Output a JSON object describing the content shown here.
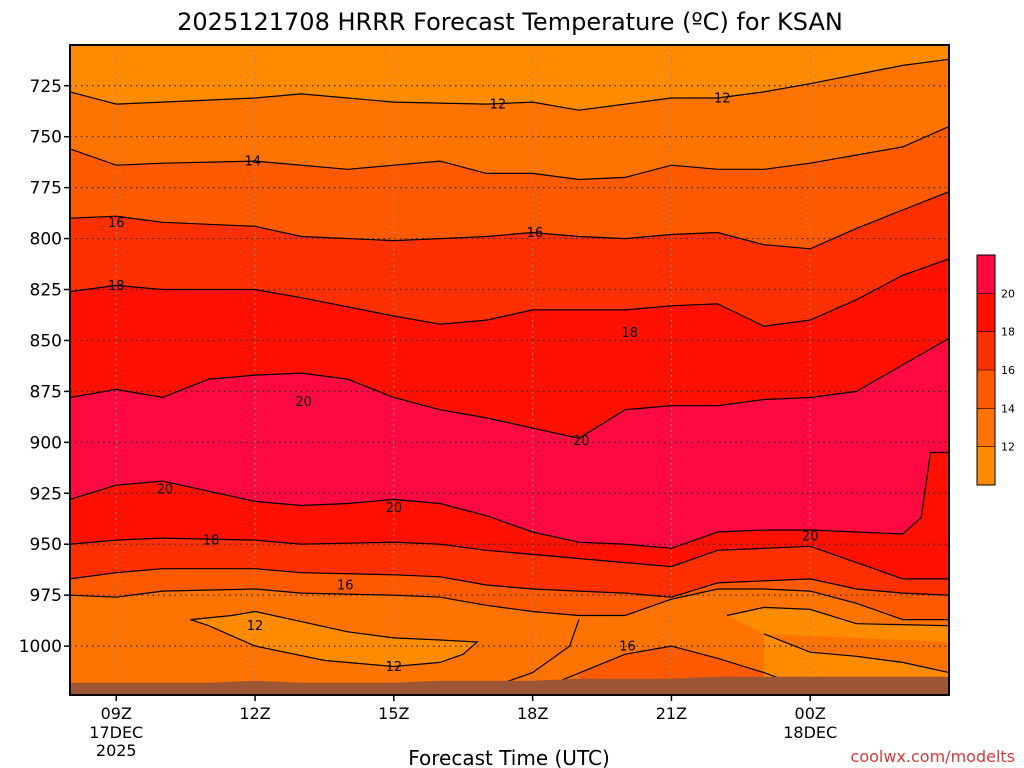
{
  "chart_data": {
    "type": "heatmap",
    "subtype": "filled-contour",
    "title": "2025121708 HRRR Forecast Temperature (ºC) for KSAN",
    "xlabel": "Forecast Time (UTC)",
    "ylabel": "",
    "x_ticks": [
      {
        "label": "09Z",
        "sub": [
          "17DEC",
          "2025"
        ]
      },
      {
        "label": "12Z",
        "sub": []
      },
      {
        "label": "15Z",
        "sub": []
      },
      {
        "label": "18Z",
        "sub": []
      },
      {
        "label": "21Z",
        "sub": []
      },
      {
        "label": "00Z",
        "sub": [
          "18DEC"
        ]
      }
    ],
    "x_range_hours": [
      8.0,
      27.0
    ],
    "x_tick_hours": [
      9,
      12,
      15,
      18,
      21,
      24
    ],
    "y_ticks": [
      725,
      750,
      775,
      800,
      825,
      850,
      875,
      900,
      925,
      950,
      975,
      1000
    ],
    "y_range": [
      705,
      1024
    ],
    "y_inverted": true,
    "grid": "dotted",
    "levels": [
      12,
      14,
      16,
      18,
      20
    ],
    "colorbar": {
      "ticks": [
        "12",
        "14",
        "16",
        "18",
        "20"
      ],
      "colors": [
        "#ff8c00",
        "#ff7400",
        "#ff5a00",
        "#ff3000",
        "#ff1000",
        "#ff0a40"
      ]
    },
    "contour_labels": [
      {
        "value": "12",
        "hour": 17.25,
        "p": 734
      },
      {
        "value": "12",
        "hour": 22.1,
        "p": 731
      },
      {
        "value": "14",
        "hour": 11.95,
        "p": 762
      },
      {
        "value": "16",
        "hour": 9.0,
        "p": 792
      },
      {
        "value": "16",
        "hour": 18.05,
        "p": 797
      },
      {
        "value": "18",
        "hour": 9.0,
        "p": 823
      },
      {
        "value": "18",
        "hour": 20.1,
        "p": 846
      },
      {
        "value": "20",
        "hour": 13.05,
        "p": 880
      },
      {
        "value": "20",
        "hour": 19.05,
        "p": 899
      },
      {
        "value": "20",
        "hour": 10.05,
        "p": 923
      },
      {
        "value": "20",
        "hour": 15.0,
        "p": 932
      },
      {
        "value": "20",
        "hour": 24.0,
        "p": 946
      },
      {
        "value": "18",
        "hour": 11.05,
        "p": 948
      },
      {
        "value": "16",
        "hour": 13.95,
        "p": 970
      },
      {
        "value": "12",
        "hour": 12.0,
        "p": 990
      },
      {
        "value": "16",
        "hour": 20.05,
        "p": 1000
      },
      {
        "value": "12",
        "hour": 15.0,
        "p": 1010
      }
    ],
    "contour_lines": [
      {
        "level": 12,
        "points": [
          [
            8.0,
            728
          ],
          [
            9.0,
            734
          ],
          [
            10.0,
            733
          ],
          [
            12.0,
            731
          ],
          [
            13.0,
            729
          ],
          [
            15.0,
            733
          ],
          [
            17.0,
            734
          ],
          [
            18.0,
            733
          ],
          [
            19.0,
            737
          ],
          [
            20.0,
            734
          ],
          [
            21.0,
            731
          ],
          [
            22.0,
            731
          ],
          [
            23.0,
            728
          ],
          [
            24.0,
            724
          ],
          [
            26.0,
            715
          ],
          [
            27.0,
            712
          ]
        ]
      },
      {
        "level": 14,
        "points": [
          [
            8.0,
            756
          ],
          [
            9.0,
            764
          ],
          [
            10.0,
            763
          ],
          [
            12.0,
            762
          ],
          [
            14.0,
            766
          ],
          [
            15.0,
            764
          ],
          [
            16.0,
            762
          ],
          [
            17.0,
            768
          ],
          [
            18.0,
            768
          ],
          [
            19.0,
            771
          ],
          [
            20.0,
            770
          ],
          [
            21.0,
            764
          ],
          [
            22.0,
            766
          ],
          [
            23.0,
            766
          ],
          [
            24.0,
            763
          ],
          [
            26.0,
            755
          ],
          [
            27.0,
            745
          ]
        ]
      },
      {
        "level": 16,
        "points": [
          [
            8.0,
            790
          ],
          [
            9.0,
            789
          ],
          [
            10.0,
            792
          ],
          [
            12.0,
            794
          ],
          [
            13.0,
            799
          ],
          [
            15.0,
            801
          ],
          [
            16.0,
            800
          ],
          [
            17.0,
            799
          ],
          [
            18.0,
            797
          ],
          [
            19.0,
            799
          ],
          [
            20.0,
            800
          ],
          [
            21.0,
            798
          ],
          [
            22.0,
            797
          ],
          [
            23.0,
            803
          ],
          [
            24.0,
            805
          ],
          [
            25.0,
            795
          ],
          [
            26.0,
            786
          ],
          [
            27.0,
            777
          ]
        ]
      },
      {
        "level": 18,
        "points": [
          [
            8.0,
            826
          ],
          [
            9.0,
            823
          ],
          [
            10.0,
            825
          ],
          [
            12.0,
            825
          ],
          [
            13.0,
            829
          ],
          [
            15.0,
            838
          ],
          [
            16.0,
            842
          ],
          [
            17.0,
            840
          ],
          [
            18.0,
            835
          ],
          [
            19.0,
            835
          ],
          [
            20.0,
            835
          ],
          [
            21.0,
            833
          ],
          [
            22.0,
            832
          ],
          [
            23.0,
            843
          ],
          [
            24.0,
            840
          ],
          [
            25.0,
            830
          ],
          [
            26.0,
            818
          ],
          [
            27.0,
            810
          ]
        ]
      },
      {
        "level": 20,
        "points": [
          [
            8.0,
            878
          ],
          [
            9.0,
            874
          ],
          [
            10.0,
            878
          ],
          [
            11.0,
            869
          ],
          [
            12.0,
            867
          ],
          [
            13.0,
            866
          ],
          [
            14.0,
            869
          ],
          [
            15.0,
            878
          ],
          [
            16.0,
            884
          ],
          [
            17.0,
            888
          ],
          [
            18.0,
            893
          ],
          [
            19.0,
            898
          ],
          [
            20.0,
            884
          ],
          [
            21.0,
            882
          ],
          [
            22.0,
            882
          ],
          [
            23.0,
            879
          ],
          [
            24.0,
            878
          ],
          [
            25.0,
            875
          ],
          [
            26.0,
            862
          ],
          [
            27.0,
            849
          ]
        ]
      },
      {
        "level": 20,
        "points": [
          [
            8.0,
            928
          ],
          [
            9.0,
            921
          ],
          [
            10.0,
            919
          ],
          [
            11.0,
            924
          ],
          [
            12.0,
            929
          ],
          [
            13.0,
            931
          ],
          [
            14.0,
            930
          ],
          [
            15.0,
            928
          ],
          [
            16.0,
            930
          ],
          [
            17.0,
            936
          ],
          [
            18.0,
            944
          ],
          [
            19.0,
            949
          ],
          [
            20.0,
            950
          ],
          [
            21.0,
            952
          ],
          [
            22.0,
            944
          ],
          [
            23.0,
            943
          ],
          [
            24.0,
            943
          ],
          [
            25.0,
            944
          ],
          [
            26.0,
            945
          ],
          [
            26.4,
            937
          ],
          [
            26.6,
            905
          ],
          [
            27.0,
            905
          ]
        ]
      },
      {
        "level": 18,
        "points": [
          [
            8.0,
            950
          ],
          [
            9.0,
            948
          ],
          [
            10.0,
            947
          ],
          [
            12.0,
            948
          ],
          [
            13.0,
            950
          ],
          [
            15.0,
            949
          ],
          [
            16.0,
            950
          ],
          [
            17.0,
            953
          ],
          [
            18.0,
            955
          ],
          [
            19.0,
            957
          ],
          [
            20.0,
            959
          ],
          [
            21.0,
            961
          ],
          [
            22.0,
            953
          ],
          [
            23.0,
            952
          ],
          [
            24.0,
            951
          ],
          [
            25.0,
            959
          ],
          [
            26.0,
            967
          ],
          [
            27.0,
            967
          ]
        ]
      },
      {
        "level": 16,
        "points": [
          [
            8.0,
            967
          ],
          [
            9.0,
            964
          ],
          [
            10.0,
            962
          ],
          [
            12.0,
            962
          ],
          [
            13.0,
            964
          ],
          [
            15.0,
            965
          ],
          [
            16.0,
            966
          ],
          [
            17.0,
            970
          ],
          [
            18.0,
            972
          ],
          [
            19.0,
            973
          ],
          [
            20.0,
            974
          ],
          [
            21.0,
            976
          ],
          [
            22.0,
            969
          ],
          [
            23.0,
            968
          ],
          [
            24.0,
            967
          ],
          [
            25.0,
            972
          ],
          [
            26.0,
            974
          ],
          [
            27.0,
            975
          ]
        ]
      },
      {
        "level": 14,
        "points": [
          [
            8.0,
            975
          ],
          [
            9.0,
            976
          ],
          [
            10.0,
            973
          ],
          [
            12.0,
            972
          ],
          [
            13.0,
            974
          ],
          [
            15.0,
            975
          ],
          [
            16.0,
            976
          ],
          [
            17.0,
            980
          ],
          [
            18.0,
            983
          ],
          [
            19.0,
            985
          ],
          [
            20.0,
            985
          ],
          [
            21.0,
            977
          ],
          [
            22.0,
            972
          ],
          [
            23.0,
            972
          ],
          [
            24.0,
            973
          ],
          [
            25.0,
            979
          ],
          [
            26.0,
            987
          ],
          [
            27.0,
            987
          ]
        ]
      },
      {
        "level": 12,
        "closed": true,
        "points": [
          [
            10.6,
            987
          ],
          [
            11.5,
            985
          ],
          [
            12.0,
            983
          ],
          [
            13.0,
            988
          ],
          [
            14.0,
            993
          ],
          [
            15.0,
            996
          ],
          [
            16.0,
            997
          ],
          [
            16.8,
            998
          ],
          [
            16.5,
            1004
          ],
          [
            16.0,
            1008
          ],
          [
            15.0,
            1010
          ],
          [
            13.5,
            1007
          ],
          [
            12.0,
            1000
          ],
          [
            11.0,
            990
          ]
        ]
      },
      {
        "level": 12,
        "points": [
          [
            17.0,
            1021
          ],
          [
            18.0,
            1013
          ],
          [
            18.8,
            1000
          ],
          [
            19.0,
            987
          ]
        ]
      },
      {
        "level": 16,
        "points": [
          [
            18.6,
            1017
          ],
          [
            20.0,
            1004
          ],
          [
            21.0,
            1000
          ],
          [
            22.0,
            1006
          ],
          [
            23.0,
            1013
          ],
          [
            23.6,
            1018
          ]
        ]
      },
      {
        "level": 12,
        "points": [
          [
            22.2,
            985
          ],
          [
            23.0,
            981
          ],
          [
            24.0,
            982
          ],
          [
            25.0,
            989
          ],
          [
            27.0,
            990
          ]
        ]
      },
      {
        "level": 12,
        "points": [
          [
            23.0,
            994
          ],
          [
            24.0,
            1003
          ],
          [
            25.0,
            1005
          ],
          [
            26.0,
            1008
          ],
          [
            27.0,
            1013
          ]
        ]
      }
    ],
    "terrain_top": [
      [
        8.0,
        1018
      ],
      [
        9.0,
        1018
      ],
      [
        10.0,
        1018
      ],
      [
        11.0,
        1018
      ],
      [
        12.0,
        1017
      ],
      [
        13.0,
        1018
      ],
      [
        14.0,
        1018
      ],
      [
        15.0,
        1018
      ],
      [
        16.0,
        1017
      ],
      [
        17.0,
        1017
      ],
      [
        18.0,
        1017
      ],
      [
        19.0,
        1016
      ],
      [
        20.0,
        1016
      ],
      [
        21.0,
        1016
      ],
      [
        22.0,
        1015
      ],
      [
        23.0,
        1015
      ],
      [
        24.0,
        1015
      ],
      [
        25.0,
        1015
      ],
      [
        26.0,
        1015
      ],
      [
        27.0,
        1015
      ]
    ],
    "terrain_color": "#9c5535"
  },
  "credit": "coolwx.com/modelts"
}
